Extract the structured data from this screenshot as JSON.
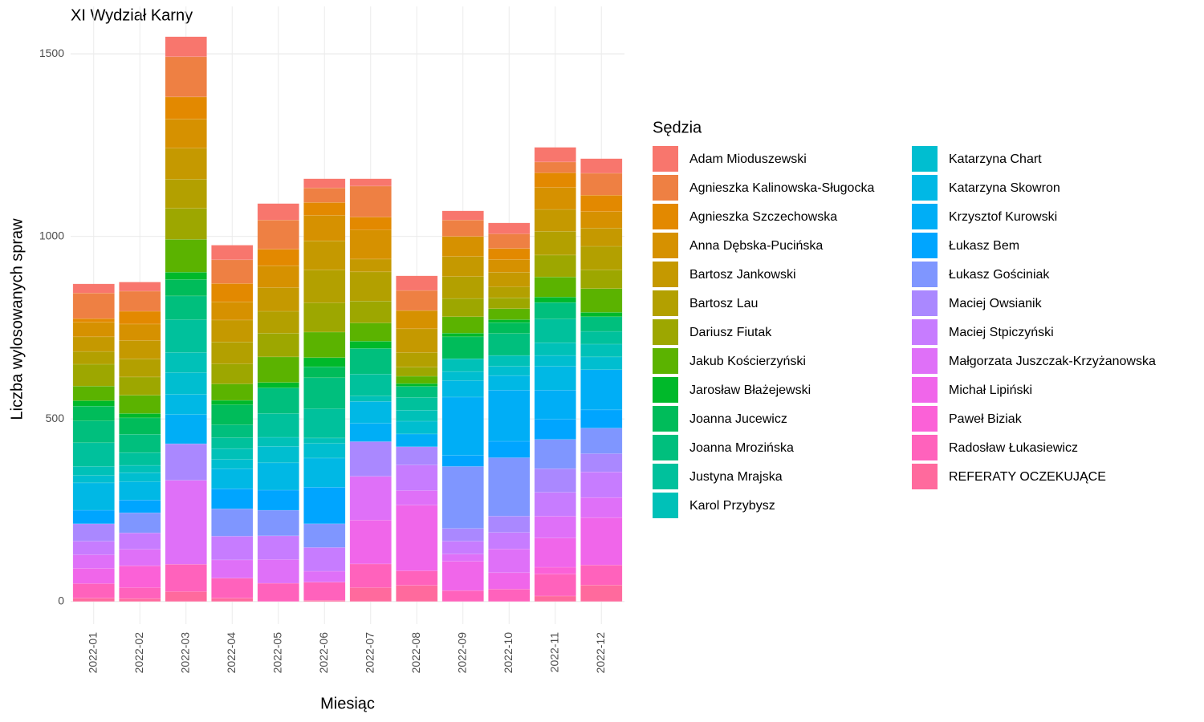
{
  "chart_data": {
    "type": "stacked_bar",
    "title": "XI Wydział Karny",
    "x_label": "Miesiąc",
    "y_label": "Liczba wylosowanych spraw",
    "legend_title": "Sędzia",
    "categories": [
      "2022-01",
      "2022-02",
      "2022-03",
      "2022-04",
      "2022-05",
      "2022-06",
      "2022-07",
      "2022-08",
      "2022-09",
      "2022-10",
      "2022-11",
      "2022-12"
    ],
    "ylim": [
      -62,
      1630
    ],
    "yticks": [
      0,
      500,
      1000,
      1500
    ],
    "grid": true,
    "legend": "right",
    "series": [
      {
        "name": "Adam Mioduszewski",
        "color": "#F8766D",
        "values": [
          25,
          25,
          55,
          40,
          45,
          25,
          20,
          40,
          25,
          30,
          40,
          40
        ]
      },
      {
        "name": "Agnieszka Kalinowska-Sługocka",
        "color": "#EE8043",
        "values": [
          70,
          55,
          110,
          65,
          80,
          40,
          85,
          55,
          45,
          40,
          30,
          60
        ]
      },
      {
        "name": "Agnieszka Szczechowska",
        "color": "#E38900",
        "values": [
          10,
          35,
          60,
          50,
          45,
          35,
          35,
          0,
          0,
          30,
          40,
          45
        ]
      },
      {
        "name": "Anna Dębska-Pucińska",
        "color": "#D69100",
        "values": [
          40,
          45,
          80,
          50,
          60,
          70,
          80,
          50,
          55,
          35,
          60,
          45
        ]
      },
      {
        "name": "Bartosz Jankowski",
        "color": "#C59900",
        "values": [
          40,
          50,
          85,
          60,
          65,
          80,
          35,
          65,
          55,
          40,
          60,
          50
        ]
      },
      {
        "name": "Bartosz Lau",
        "color": "#B3A000",
        "values": [
          35,
          50,
          80,
          60,
          60,
          90,
          80,
          40,
          60,
          30,
          65,
          65
        ]
      },
      {
        "name": "Dariusz Fiutak",
        "color": "#9DA700",
        "values": [
          60,
          50,
          85,
          55,
          65,
          80,
          60,
          25,
          50,
          30,
          60,
          51
        ]
      },
      {
        "name": "Jakub Kościerzyński",
        "color": "#5BB300",
        "values": [
          40,
          50,
          90,
          45,
          70,
          70,
          50,
          20,
          45,
          30,
          55,
          65
        ]
      },
      {
        "name": "Jarosław Błażejewski",
        "color": "#00B92A",
        "values": [
          15,
          12,
          20,
          12,
          15,
          25,
          20,
          8,
          10,
          8,
          15,
          12
        ]
      },
      {
        "name": "Joanna Jucewicz",
        "color": "#00BC5A",
        "values": [
          40,
          45,
          45,
          55,
          0,
          30,
          0,
          0,
          60,
          30,
          0,
          0
        ]
      },
      {
        "name": "Joanna Mrozińska",
        "color": "#00BF7D",
        "values": [
          60,
          50,
          65,
          35,
          70,
          85,
          70,
          30,
          0,
          60,
          45,
          40
        ]
      },
      {
        "name": "Justyna Mrajska",
        "color": "#00C19C",
        "values": [
          65,
          35,
          90,
          30,
          65,
          80,
          60,
          35,
          0,
          0,
          65,
          35
        ]
      },
      {
        "name": "Karol Przybysz",
        "color": "#00C1B8",
        "values": [
          25,
          20,
          55,
          30,
          25,
          15,
          15,
          30,
          35,
          30,
          35,
          35
        ]
      },
      {
        "name": "Katarzyna Chart",
        "color": "#00BED0",
        "values": [
          20,
          25,
          60,
          25,
          45,
          40,
          0,
          35,
          25,
          25,
          30,
          35
        ]
      },
      {
        "name": "Katarzyna Skowron",
        "color": "#00B8E5",
        "values": [
          75,
          50,
          55,
          55,
          75,
          80,
          60,
          0,
          45,
          40,
          65,
          0
        ]
      },
      {
        "name": "Krzysztof Kurowski",
        "color": "#00AEF6",
        "values": [
          0,
          0,
          80,
          0,
          0,
          0,
          50,
          35,
          160,
          140,
          80,
          110
        ]
      },
      {
        "name": "Łukasz Bem",
        "color": "#00A5FF",
        "values": [
          37,
          35,
          0,
          55,
          55,
          100,
          0,
          0,
          30,
          45,
          55,
          50
        ]
      },
      {
        "name": "Łukasz Gościniak",
        "color": "#7F96FF",
        "values": [
          0,
          55,
          0,
          75,
          70,
          65,
          0,
          0,
          170,
          160,
          80,
          70
        ]
      },
      {
        "name": "Maciej Owsianik",
        "color": "#AA88FF",
        "values": [
          48,
          0,
          100,
          0,
          0,
          0,
          95,
          50,
          35,
          45,
          65,
          50
        ]
      },
      {
        "name": "Maciej Stpiczyński",
        "color": "#C77CFF",
        "values": [
          37,
          45,
          0,
          65,
          65,
          65,
          0,
          70,
          35,
          45,
          65,
          70
        ]
      },
      {
        "name": "Małgorzata Juszczak-Krzyżanowska",
        "color": "#DF70F8",
        "values": [
          37,
          45,
          230,
          50,
          65,
          30,
          120,
          40,
          20,
          65,
          60,
          55
        ]
      },
      {
        "name": "Michał Lipiński",
        "color": "#F066EA",
        "values": [
          42,
          0,
          0,
          0,
          0,
          0,
          120,
          180,
          80,
          45,
          80,
          130
        ]
      },
      {
        "name": "Paweł Biziak",
        "color": "#FB61D7",
        "values": [
          0,
          60,
          0,
          0,
          0,
          0,
          0,
          0,
          0,
          0,
          19,
          0
        ]
      },
      {
        "name": "Radosław Łukasiewicz",
        "color": "#FF62BC",
        "values": [
          40,
          30,
          75,
          55,
          50,
          50,
          65,
          40,
          30,
          34,
          60,
          55
        ]
      },
      {
        "name": "REFERATY OCZEKUJĄCE",
        "color": "#FF6A9D",
        "values": [
          9,
          8,
          27,
          9,
          0,
          3,
          38,
          44,
          0,
          0,
          15,
          45
        ]
      }
    ]
  }
}
